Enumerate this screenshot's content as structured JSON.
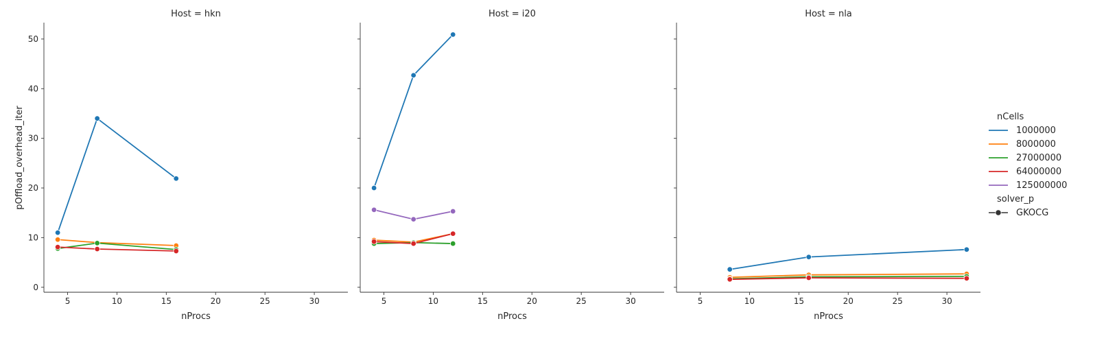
{
  "chart_data": {
    "type": "line",
    "facet_label": "Host",
    "xlabel": "nProcs",
    "ylabel": "pOffload_overhead_iter",
    "xlim": [
      2.6,
      33.4
    ],
    "ylim": [
      -1.0,
      53.3
    ],
    "xticks": [
      5,
      10,
      15,
      20,
      25,
      30
    ],
    "yticks": [
      0,
      10,
      20,
      30,
      40,
      50
    ],
    "legend": {
      "position": "right",
      "hue_title": "nCells",
      "style_title": "solver_p",
      "style_entries": [
        "GKOCG"
      ]
    },
    "colors": {
      "1000000": "#1f77b4",
      "8000000": "#ff7f0e",
      "27000000": "#2ca02c",
      "64000000": "#d62728",
      "125000000": "#9467bd"
    },
    "series_order": [
      "1000000",
      "8000000",
      "27000000",
      "64000000",
      "125000000"
    ],
    "panels": [
      {
        "title": "Host = hkn",
        "series": [
          {
            "name": "1000000",
            "x": [
              4,
              8,
              16
            ],
            "y": [
              11.0,
              34.0,
              21.9
            ]
          },
          {
            "name": "8000000",
            "x": [
              4,
              8,
              16
            ],
            "y": [
              9.6,
              9.0,
              8.4
            ]
          },
          {
            "name": "27000000",
            "x": [
              4,
              8,
              16
            ],
            "y": [
              7.8,
              8.9,
              7.6
            ]
          },
          {
            "name": "64000000",
            "x": [
              4,
              8,
              16
            ],
            "y": [
              8.1,
              7.7,
              7.3
            ]
          }
        ]
      },
      {
        "title": "Host = i20",
        "series": [
          {
            "name": "1000000",
            "x": [
              4,
              8,
              12
            ],
            "y": [
              20.0,
              42.7,
              50.9
            ]
          },
          {
            "name": "8000000",
            "x": [
              4,
              8,
              12
            ],
            "y": [
              9.5,
              9.1,
              10.8
            ]
          },
          {
            "name": "27000000",
            "x": [
              4,
              8,
              12
            ],
            "y": [
              8.8,
              9.0,
              8.8
            ]
          },
          {
            "name": "64000000",
            "x": [
              4,
              8,
              12
            ],
            "y": [
              9.2,
              8.8,
              10.8
            ]
          },
          {
            "name": "125000000",
            "x": [
              4,
              8,
              12
            ],
            "y": [
              15.6,
              13.7,
              15.3
            ]
          }
        ]
      },
      {
        "title": "Host = nla",
        "series": [
          {
            "name": "1000000",
            "x": [
              8,
              16,
              32
            ],
            "y": [
              3.6,
              6.1,
              7.6
            ]
          },
          {
            "name": "8000000",
            "x": [
              8,
              16,
              32
            ],
            "y": [
              2.0,
              2.5,
              2.7
            ]
          },
          {
            "name": "27000000",
            "x": [
              8,
              16,
              32
            ],
            "y": [
              1.7,
              2.1,
              2.2
            ]
          },
          {
            "name": "64000000",
            "x": [
              8,
              16,
              32
            ],
            "y": [
              1.6,
              1.9,
              1.8
            ]
          }
        ]
      }
    ]
  }
}
